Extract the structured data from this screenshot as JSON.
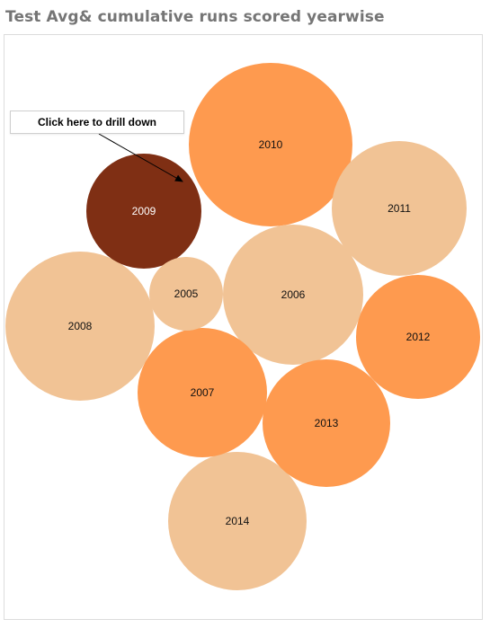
{
  "title": "Test Avg& cumulative runs scored yearwise",
  "annotation": {
    "text": "Click here to drill down"
  },
  "colors": {
    "highlight": "#7f2f14",
    "dark_orange": "#fe9a4f",
    "light_orange": "#f1c395",
    "label_dark": "#111111",
    "label_light": "#ffffff"
  },
  "chart_data": {
    "type": "bubble",
    "title": "Test Avg& cumulative runs scored yearwise",
    "series": [
      {
        "name": "2010",
        "label": "2010",
        "size_rank": 1,
        "color": "#fe9a4f"
      },
      {
        "name": "2008",
        "label": "2008",
        "size_rank": 2,
        "color": "#f1c395"
      },
      {
        "name": "2014",
        "label": "2014",
        "size_rank": 3,
        "color": "#f1c395"
      },
      {
        "name": "2006",
        "label": "2006",
        "size_rank": 4,
        "color": "#f1c395"
      },
      {
        "name": "2011",
        "label": "2011",
        "size_rank": 5,
        "color": "#f1c395"
      },
      {
        "name": "2007",
        "label": "2007",
        "size_rank": 6,
        "color": "#fe9a4f"
      },
      {
        "name": "2013",
        "label": "2013",
        "size_rank": 7,
        "color": "#fe9a4f"
      },
      {
        "name": "2012",
        "label": "2012",
        "size_rank": 8,
        "color": "#fe9a4f"
      },
      {
        "name": "2009",
        "label": "2009",
        "size_rank": 9,
        "color": "#7f2f14",
        "highlighted": true
      },
      {
        "name": "2005",
        "label": "2005",
        "size_rank": 10,
        "color": "#f1c395"
      }
    ]
  }
}
